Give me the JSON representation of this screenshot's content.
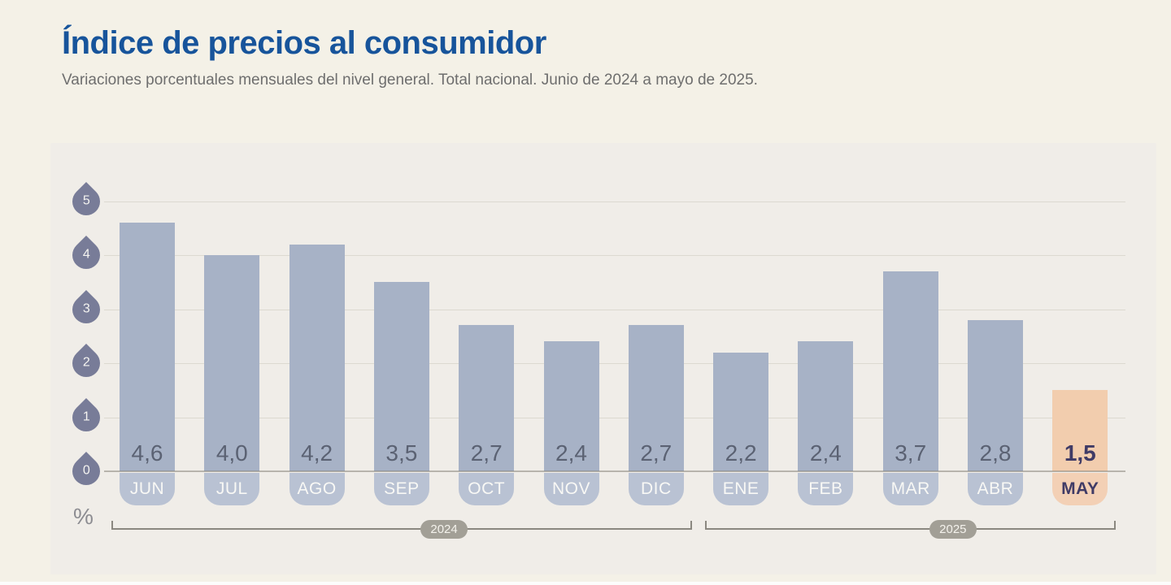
{
  "header": {
    "title": "Índice de precios al consumidor",
    "subtitle": "Variaciones porcentuales mensuales del nivel general. Total nacional. Junio de 2024 a mayo de 2025."
  },
  "chart_data": {
    "type": "bar",
    "title": "Índice de precios al consumidor",
    "subtitle": "Variaciones porcentuales mensuales del nivel general. Total nacional. Junio de 2024 a mayo de 2025.",
    "categories": [
      "JUN",
      "JUL",
      "AGO",
      "SEP",
      "OCT",
      "NOV",
      "DIC",
      "ENE",
      "FEB",
      "MAR",
      "ABR",
      "MAY"
    ],
    "values": [
      4.6,
      4.0,
      4.2,
      3.5,
      2.7,
      2.4,
      2.7,
      2.2,
      2.4,
      3.7,
      2.8,
      1.5
    ],
    "value_labels": [
      "4,6",
      "4,0",
      "4,2",
      "3,5",
      "2,7",
      "2,4",
      "2,7",
      "2,2",
      "2,4",
      "3,7",
      "2,8",
      "1,5"
    ],
    "xlabel": "",
    "ylabel": "%",
    "ylim": [
      0,
      5
    ],
    "yticks": [
      0,
      1,
      2,
      3,
      4,
      5
    ],
    "grid": true,
    "highlight_index": 11,
    "year_groups": [
      {
        "label": "2024",
        "start_index": 0,
        "end_index": 6
      },
      {
        "label": "2025",
        "start_index": 7,
        "end_index": 11
      }
    ],
    "colors": {
      "page_bg": "#f4f1e7",
      "panel_bg": "#f0ede8",
      "title": "#17549b",
      "subtitle": "#6e6e6e",
      "bar": "#a7b2c6",
      "bar_highlight": "#f2cdae",
      "month_pill": "#b9c2d3",
      "month_pill_highlight": "#f3d0b5",
      "value_label": "#5b6273",
      "value_label_highlight": "#403b66",
      "month_label": "#f8f8f5",
      "month_label_highlight": "#403b66",
      "axis_marker": "#787c98",
      "axis_marker_text": "#f5f4f1",
      "gridline": "#dcd9d0",
      "baseline": "#827f74",
      "year_pill": "#a29f96",
      "year_pill_text": "#f4f2ec",
      "bracket": "#8b8880",
      "pct_label": "#8c8c91"
    }
  }
}
